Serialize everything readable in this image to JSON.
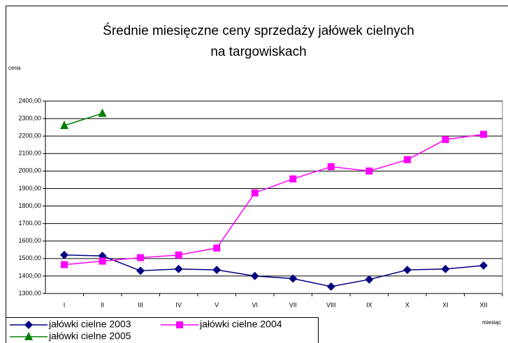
{
  "chart_data": {
    "type": "line",
    "title": [
      "Średnie miesięczne ceny sprzedaży jałówek cielnych",
      "na targowiskach"
    ],
    "y_label": "cena",
    "x_label": "miesiąc",
    "categories": [
      "I",
      "II",
      "III",
      "IV",
      "V",
      "VI",
      "VII",
      "VIII",
      "IX",
      "X",
      "XI",
      "XII"
    ],
    "series": [
      {
        "name": "jałówki cielne 2003",
        "color": "#000080",
        "marker": "diamond",
        "values": [
          1520,
          1515,
          1430,
          1440,
          1435,
          1400,
          1385,
          1340,
          1380,
          1435,
          1440,
          1460
        ]
      },
      {
        "name": "jałówki cielne 2004",
        "color": "#ff00ff",
        "marker": "square",
        "values": [
          1465,
          1485,
          1505,
          1520,
          1560,
          1875,
          1955,
          2025,
          2000,
          2065,
          2180,
          2210
        ]
      },
      {
        "name": "jałówki cielne 2005",
        "color": "#008000",
        "marker": "triangle",
        "values": [
          2260,
          2330,
          null,
          null,
          null,
          null,
          null,
          null,
          null,
          null,
          null,
          null
        ]
      }
    ],
    "ylim": [
      1300,
      2400
    ],
    "yticks": [
      {
        "value": 1300,
        "label": "1300,00"
      },
      {
        "value": 1400,
        "label": "1400,00"
      },
      {
        "value": 1500,
        "label": "1500,00"
      },
      {
        "value": 1600,
        "label": "1600,00"
      },
      {
        "value": 1700,
        "label": "1700,00"
      },
      {
        "value": 1800,
        "label": "1800,00"
      },
      {
        "value": 1900,
        "label": "1900,00"
      },
      {
        "value": 2000,
        "label": "2000,00"
      },
      {
        "value": 2100,
        "label": "2100,00"
      },
      {
        "value": 2200,
        "label": "2200,00"
      },
      {
        "value": 2300,
        "label": "2300,00"
      },
      {
        "value": 2400,
        "label": "2400,00"
      }
    ],
    "grid": true
  }
}
